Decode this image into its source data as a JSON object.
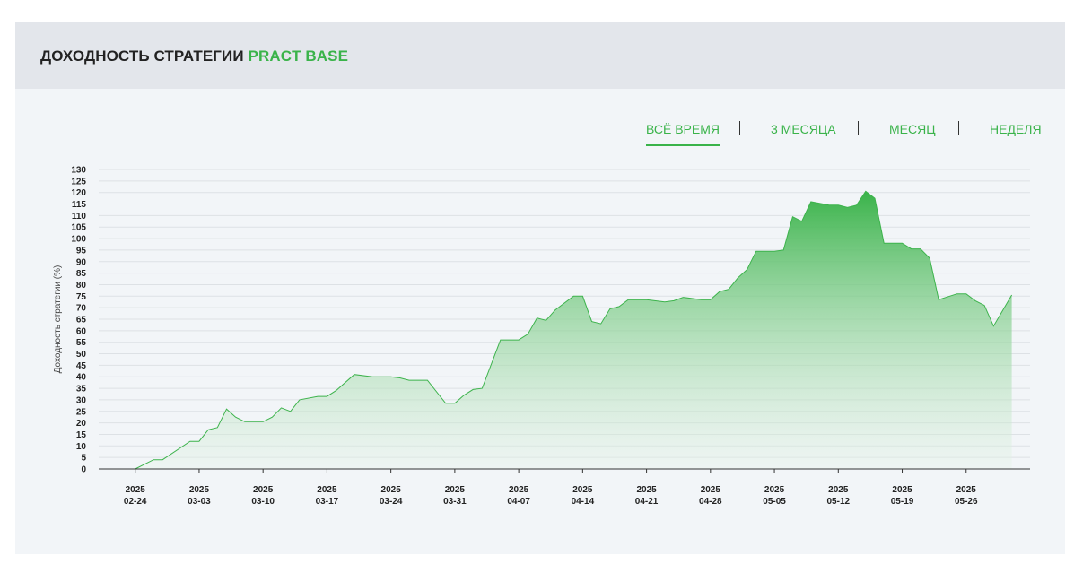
{
  "header": {
    "title_prefix": "ДОХОДНОСТЬ СТРАТЕГИИ",
    "title_accent": "PRACT BASE"
  },
  "period_tabs": [
    {
      "label": "ВСЁ ВРЕМЯ",
      "active": true
    },
    {
      "label": "3 МЕСЯЦА",
      "active": false
    },
    {
      "label": "МЕСЯЦ",
      "active": false
    },
    {
      "label": "НЕДЕЛЯ",
      "active": false
    }
  ],
  "colors": {
    "accent": "#3ab34a",
    "line": "#3db34c",
    "fill_top": "#3ab34a",
    "fill_bottom": "#e6f4e8"
  },
  "chart_data": {
    "type": "area",
    "ylabel": "Доходность стратегии (%)",
    "xlabel": "",
    "ylim": [
      0,
      130
    ],
    "yticks": [
      0,
      5,
      10,
      15,
      20,
      25,
      30,
      35,
      40,
      45,
      50,
      55,
      60,
      65,
      70,
      75,
      80,
      85,
      90,
      95,
      100,
      105,
      110,
      115,
      120,
      125,
      130
    ],
    "xlim": [
      "2025-02-20",
      "2025-06-02"
    ],
    "xticks": [
      {
        "date": "2025-02-24",
        "year": "2025",
        "label": "02-24"
      },
      {
        "date": "2025-03-03",
        "year": "2025",
        "label": "03-03"
      },
      {
        "date": "2025-03-10",
        "year": "2025",
        "label": "03-10"
      },
      {
        "date": "2025-03-17",
        "year": "2025",
        "label": "03-17"
      },
      {
        "date": "2025-03-24",
        "year": "2025",
        "label": "03-24"
      },
      {
        "date": "2025-03-31",
        "year": "2025",
        "label": "03-31"
      },
      {
        "date": "2025-04-07",
        "year": "2025",
        "label": "04-07"
      },
      {
        "date": "2025-04-14",
        "year": "2025",
        "label": "04-14"
      },
      {
        "date": "2025-04-21",
        "year": "2025",
        "label": "04-21"
      },
      {
        "date": "2025-04-28",
        "year": "2025",
        "label": "04-28"
      },
      {
        "date": "2025-05-05",
        "year": "2025",
        "label": "05-05"
      },
      {
        "date": "2025-05-12",
        "year": "2025",
        "label": "05-12"
      },
      {
        "date": "2025-05-19",
        "year": "2025",
        "label": "05-19"
      },
      {
        "date": "2025-05-26",
        "year": "2025",
        "label": "05-26"
      }
    ],
    "grid": true,
    "series": [
      {
        "points": [
          [
            "2025-02-21",
            0
          ],
          [
            "2025-02-24",
            0
          ],
          [
            "2025-02-26",
            4
          ],
          [
            "2025-02-27",
            4
          ],
          [
            "2025-03-02",
            12
          ],
          [
            "2025-03-03",
            12
          ],
          [
            "2025-03-04",
            17
          ],
          [
            "2025-03-05",
            18
          ],
          [
            "2025-03-06",
            26
          ],
          [
            "2025-03-07",
            22.5
          ],
          [
            "2025-03-08",
            20.5
          ],
          [
            "2025-03-10",
            20.5
          ],
          [
            "2025-03-11",
            22.5
          ],
          [
            "2025-03-12",
            26.5
          ],
          [
            "2025-03-13",
            25
          ],
          [
            "2025-03-14",
            30
          ],
          [
            "2025-03-16",
            31.5
          ],
          [
            "2025-03-17",
            31.5
          ],
          [
            "2025-03-18",
            34
          ],
          [
            "2025-03-20",
            41
          ],
          [
            "2025-03-22",
            40
          ],
          [
            "2025-03-24",
            40
          ],
          [
            "2025-03-25",
            39.5
          ],
          [
            "2025-03-26",
            38.5
          ],
          [
            "2025-03-28",
            38.5
          ],
          [
            "2025-03-30",
            28.5
          ],
          [
            "2025-03-31",
            28.5
          ],
          [
            "2025-04-01",
            32
          ],
          [
            "2025-04-02",
            34.5
          ],
          [
            "2025-04-03",
            35
          ],
          [
            "2025-04-05",
            56
          ],
          [
            "2025-04-07",
            56
          ],
          [
            "2025-04-08",
            58.5
          ],
          [
            "2025-04-09",
            65.5
          ],
          [
            "2025-04-10",
            64.5
          ],
          [
            "2025-04-11",
            69
          ],
          [
            "2025-04-13",
            75
          ],
          [
            "2025-04-14",
            75
          ],
          [
            "2025-04-15",
            64
          ],
          [
            "2025-04-16",
            63
          ],
          [
            "2025-04-17",
            69.5
          ],
          [
            "2025-04-18",
            70.5
          ],
          [
            "2025-04-19",
            73.5
          ],
          [
            "2025-04-21",
            73.5
          ],
          [
            "2025-04-23",
            72.5
          ],
          [
            "2025-04-24",
            73
          ],
          [
            "2025-04-25",
            74.5
          ],
          [
            "2025-04-27",
            73.5
          ],
          [
            "2025-04-28",
            73.5
          ],
          [
            "2025-04-29",
            77
          ],
          [
            "2025-04-30",
            78
          ],
          [
            "2025-05-01",
            83
          ],
          [
            "2025-05-02",
            86.5
          ],
          [
            "2025-05-03",
            94.5
          ],
          [
            "2025-05-05",
            94.5
          ],
          [
            "2025-05-06",
            95
          ],
          [
            "2025-05-07",
            109.5
          ],
          [
            "2025-05-08",
            107.5
          ],
          [
            "2025-05-09",
            116
          ],
          [
            "2025-05-11",
            114.5
          ],
          [
            "2025-05-12",
            114.5
          ],
          [
            "2025-05-13",
            113.5
          ],
          [
            "2025-05-14",
            114.5
          ],
          [
            "2025-05-15",
            120.5
          ],
          [
            "2025-05-16",
            117.5
          ],
          [
            "2025-05-17",
            98
          ],
          [
            "2025-05-19",
            98
          ],
          [
            "2025-05-20",
            95.5
          ],
          [
            "2025-05-21",
            95.5
          ],
          [
            "2025-05-22",
            91.5
          ],
          [
            "2025-05-23",
            73.5
          ],
          [
            "2025-05-25",
            76
          ],
          [
            "2025-05-26",
            76
          ],
          [
            "2025-05-27",
            73
          ],
          [
            "2025-05-28",
            71
          ],
          [
            "2025-05-29",
            62
          ],
          [
            "2025-05-31",
            75.5
          ]
        ]
      }
    ]
  }
}
